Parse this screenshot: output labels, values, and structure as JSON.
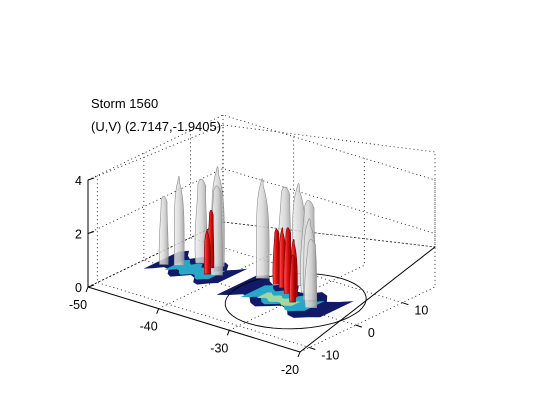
{
  "chart_data": {
    "type": "3d-isosurface",
    "title": [
      "Storm 1560",
      "(U,V) (2.7147,-1.9405)"
    ],
    "x_ticks": [
      -50,
      -40,
      -30,
      -20
    ],
    "y_ticks": [
      -10,
      0,
      10
    ],
    "z_ticks": [
      0,
      2,
      4
    ],
    "xlim": [
      -50,
      -20
    ],
    "ylim": [
      -12,
      17
    ],
    "zlim": [
      0,
      4
    ],
    "grid": true,
    "colors": {
      "outer_shell": "#c8c8c8",
      "inner_core": "#e01010",
      "base_dark": "#101a66",
      "base_mid": "#2aa6c8",
      "base_light": "#9fd8a0"
    },
    "surfaces": {
      "grey": [
        {
          "x": -47.5,
          "y": 0.5,
          "w": 1.2,
          "h": 2.6
        },
        {
          "x": -46.0,
          "y": 1.5,
          "w": 1.4,
          "h": 3.4
        },
        {
          "x": -44.5,
          "y": 4.0,
          "w": 1.6,
          "h": 3.2
        },
        {
          "x": -42.5,
          "y": 4.5,
          "w": 1.8,
          "h": 3.8
        },
        {
          "x": -41.0,
          "y": 2.0,
          "w": 1.6,
          "h": 3.4
        },
        {
          "x": -36.5,
          "y": 5.0,
          "w": 1.8,
          "h": 3.8
        },
        {
          "x": -34.0,
          "y": 6.0,
          "w": 1.8,
          "h": 3.6
        },
        {
          "x": -32.0,
          "y": 6.0,
          "w": 2.0,
          "h": 3.9
        },
        {
          "x": -30.0,
          "y": 5.0,
          "w": 2.0,
          "h": 3.5
        },
        {
          "x": -28.5,
          "y": 3.0,
          "w": 1.8,
          "h": 3.1
        },
        {
          "x": -27.0,
          "y": 1.0,
          "w": 1.6,
          "h": 2.6
        }
      ],
      "red": [
        {
          "x": -42.8,
          "y": 3.5,
          "w": 0.8,
          "h": 2.2
        },
        {
          "x": -42.0,
          "y": 1.5,
          "w": 0.9,
          "h": 1.7
        },
        {
          "x": -34.2,
          "y": 4.5,
          "w": 0.9,
          "h": 2.1
        },
        {
          "x": -33.0,
          "y": 4.0,
          "w": 1.0,
          "h": 2.3
        },
        {
          "x": -31.6,
          "y": 3.0,
          "w": 1.0,
          "h": 2.5
        },
        {
          "x": -30.4,
          "y": 2.5,
          "w": 0.9,
          "h": 2.2
        },
        {
          "x": -29.6,
          "y": 1.0,
          "w": 0.8,
          "h": 1.8
        }
      ]
    },
    "storm_outline": {
      "cx": -29.5,
      "cy": 1.5,
      "rx": 7.5,
      "ry": 10.0
    }
  }
}
